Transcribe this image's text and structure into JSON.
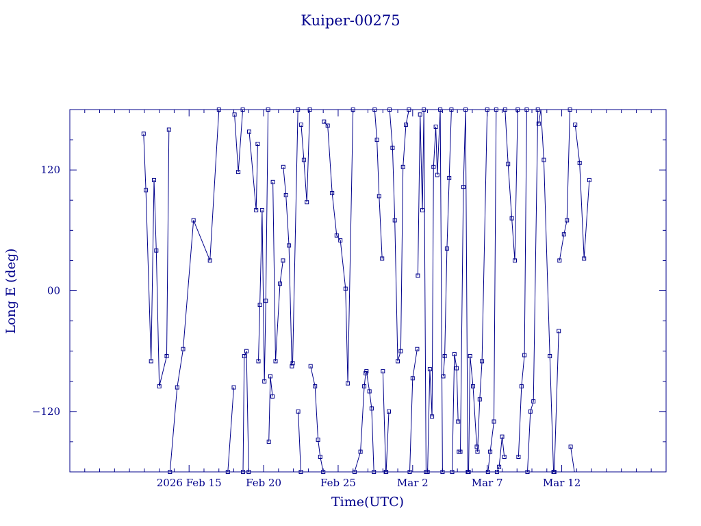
{
  "chart_data": {
    "type": "line",
    "title": "Kuiper-00275",
    "xlabel": "Time(UTC)",
    "ylabel": "Long E (deg)",
    "x_unit": "day of UTC, 2026 (day 1 = Jan 1)",
    "xlim": [
      38,
      78
    ],
    "ylim": [
      -180,
      180
    ],
    "x_ticks": [
      {
        "x": 46,
        "label": "2026 Feb 15"
      },
      {
        "x": 51,
        "label": "Feb 20"
      },
      {
        "x": 56,
        "label": "Feb 25"
      },
      {
        "x": 61,
        "label": "Mar  2"
      },
      {
        "x": 66,
        "label": "Mar  7"
      },
      {
        "x": 71,
        "label": "Mar 12"
      }
    ],
    "y_ticks": [
      {
        "y": 120,
        "label": "120"
      },
      {
        "y": 0,
        "label": "00"
      },
      {
        "y": -120,
        "label": "−120"
      }
    ],
    "grid": false,
    "color": "#00008b",
    "marker": "square",
    "series": [
      {
        "x": [
          42.95,
          43.1,
          43.45,
          43.65,
          43.8,
          44.0,
          44.5,
          44.65
        ],
        "y": [
          156,
          100,
          -70,
          110,
          40,
          -95,
          -65,
          160
        ]
      },
      {
        "x": [
          44.72,
          45.2,
          45.6,
          46.3,
          47.4,
          48.0
        ],
        "y": [
          -180,
          -96,
          -58,
          70,
          30,
          180
        ]
      },
      {
        "x": [
          48.6,
          49.0
        ],
        "y": [
          -180,
          -96
        ]
      },
      {
        "x": [
          49.05,
          49.3,
          49.6
        ],
        "y": [
          175,
          118,
          180
        ]
      },
      {
        "x": [
          49.62,
          49.7,
          49.85,
          50.0
        ],
        "y": [
          -180,
          -65,
          -60,
          -180
        ]
      },
      {
        "x": [
          50.03,
          50.5,
          50.6
        ],
        "y": [
          158,
          80,
          146
        ]
      },
      {
        "x": [
          50.65,
          50.75,
          50.9,
          51.05,
          51.15,
          51.3
        ],
        "y": [
          -70,
          -14,
          80,
          -90,
          -10,
          180
        ]
      },
      {
        "x": [
          51.35,
          51.45,
          51.6
        ],
        "y": [
          -150,
          -85,
          -105
        ]
      },
      {
        "x": [
          51.62,
          51.8,
          52.1,
          52.3
        ],
        "y": [
          108,
          -70,
          7,
          30
        ]
      },
      {
        "x": [
          52.32,
          52.5,
          52.7,
          52.9
        ],
        "y": [
          123,
          95,
          45,
          -75
        ]
      },
      {
        "x": [
          52.95,
          53.3
        ],
        "y": [
          -72,
          180
        ]
      },
      {
        "x": [
          53.32,
          53.5
        ],
        "y": [
          -120,
          -180
        ]
      },
      {
        "x": [
          53.52,
          53.7,
          53.9,
          54.1
        ],
        "y": [
          165,
          130,
          88,
          180
        ]
      },
      {
        "x": [
          54.15,
          54.45,
          54.65,
          54.8,
          55.0
        ],
        "y": [
          -75,
          -95,
          -148,
          -165,
          -180
        ]
      },
      {
        "x": [
          55.05,
          55.3,
          55.6,
          55.9,
          56.15,
          56.5,
          56.65,
          57.0
        ],
        "y": [
          168,
          164,
          97,
          55,
          50,
          2,
          -92,
          180
        ]
      },
      {
        "x": [
          57.1,
          57.5,
          57.75,
          57.85
        ],
        "y": [
          -180,
          -160,
          -95,
          -82
        ]
      },
      {
        "x": [
          57.9,
          58.1,
          58.25,
          58.4
        ],
        "y": [
          -80,
          -100,
          -117,
          -180
        ]
      },
      {
        "x": [
          58.45,
          58.6,
          58.75,
          58.95
        ],
        "y": [
          180,
          150,
          94,
          32
        ]
      },
      {
        "x": [
          59.0,
          59.2
        ],
        "y": [
          -80,
          -180
        ]
      },
      {
        "x": [
          59.22,
          59.4
        ],
        "y": [
          -180,
          -120
        ]
      },
      {
        "x": [
          59.45,
          59.65,
          59.8,
          60.0,
          60.2,
          60.35,
          60.55,
          60.75
        ],
        "y": [
          180,
          142,
          70,
          -70,
          -60,
          123,
          165,
          180
        ]
      },
      {
        "x": [
          60.8,
          61.0,
          61.3
        ],
        "y": [
          -180,
          -87,
          -58
        ]
      },
      {
        "x": [
          61.35,
          61.5,
          61.65,
          61.75,
          61.9
        ],
        "y": [
          15,
          175,
          80,
          180,
          -180
        ]
      },
      {
        "x": [
          62.0,
          62.15,
          62.3,
          62.4,
          62.55,
          62.65,
          62.85,
          63.0
        ],
        "y": [
          -180,
          -78,
          -125,
          123,
          163,
          115,
          180,
          -180
        ]
      },
      {
        "x": [
          63.05,
          63.15,
          63.3,
          63.45,
          63.6
        ],
        "y": [
          -85,
          -65,
          42,
          112,
          180
        ]
      },
      {
        "x": [
          63.65,
          63.8,
          63.95,
          64.05
        ],
        "y": [
          -180,
          -63,
          -77,
          -130
        ]
      },
      {
        "x": [
          64.1,
          64.2,
          64.4,
          64.55,
          64.7
        ],
        "y": [
          -160,
          -160,
          103,
          180,
          -180
        ]
      },
      {
        "x": [
          64.75,
          64.85,
          65.05,
          65.3
        ],
        "y": [
          -180,
          -65,
          -95,
          -155
        ]
      },
      {
        "x": [
          65.35,
          65.5,
          65.65,
          66.0
        ],
        "y": [
          -160,
          -108,
          -70,
          180
        ]
      },
      {
        "x": [
          66.05,
          66.2,
          66.45,
          66.6
        ],
        "y": [
          -180,
          -160,
          -130,
          180
        ]
      },
      {
        "x": [
          66.65,
          66.8,
          67.0,
          67.15
        ],
        "y": [
          -180,
          -175,
          -145,
          -165
        ]
      },
      {
        "x": [
          67.2,
          67.4,
          67.65,
          67.85,
          68.05
        ],
        "y": [
          180,
          126,
          72,
          30,
          180
        ]
      },
      {
        "x": [
          68.1,
          68.3,
          68.5,
          68.65
        ],
        "y": [
          -165,
          -95,
          -64,
          180
        ]
      },
      {
        "x": [
          68.7,
          68.9,
          69.1,
          69.4
        ],
        "y": [
          -180,
          -120,
          -110,
          180
        ]
      },
      {
        "x": [
          69.45,
          69.6,
          69.8,
          70.2,
          70.45
        ],
        "y": [
          166,
          182,
          130,
          -65,
          -180
        ]
      },
      {
        "x": [
          70.5,
          70.8
        ],
        "y": [
          -180,
          -40
        ]
      },
      {
        "x": [
          70.85,
          71.15,
          71.35,
          71.55
        ],
        "y": [
          30,
          56,
          70,
          180
        ]
      },
      {
        "x": [
          71.6,
          71.85
        ],
        "y": [
          -155,
          -182
        ]
      },
      {
        "x": [
          71.9,
          72.2,
          72.5,
          72.85
        ],
        "y": [
          165,
          127,
          32,
          110
        ]
      }
    ]
  }
}
